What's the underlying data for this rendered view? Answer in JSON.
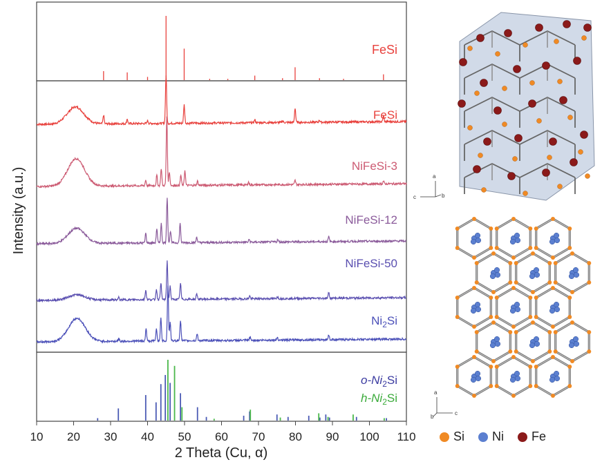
{
  "chart_data": {
    "type": "line",
    "xlabel": "2 Theta (Cu, α)",
    "ylabel": "Intensity (a.u.)",
    "xlim": [
      10,
      110
    ],
    "x_ticks": [
      10,
      20,
      30,
      40,
      50,
      60,
      70,
      80,
      90,
      100,
      110
    ],
    "reference_top": {
      "name": "FeSi",
      "color": "#e8403c",
      "peaks": [
        [
          28.1,
          0.14
        ],
        [
          34.5,
          0.12
        ],
        [
          40.0,
          0.05
        ],
        [
          45.0,
          1.0
        ],
        [
          49.9,
          0.49
        ],
        [
          56.8,
          0.02
        ],
        [
          61.7,
          0.02
        ],
        [
          69.0,
          0.07
        ],
        [
          76.5,
          0.03
        ],
        [
          79.9,
          0.2
        ],
        [
          86.5,
          0.03
        ],
        [
          93.0,
          0.02
        ],
        [
          103.8,
          0.09
        ]
      ]
    },
    "series": [
      {
        "name": "FeSi",
        "color": "#e8403c",
        "hump": [
          20.5,
          0.55
        ],
        "peaks": [
          [
            28.1,
            0.18
          ],
          [
            34.5,
            0.1
          ],
          [
            40.0,
            0.06
          ],
          [
            45.0,
            1.0
          ],
          [
            49.9,
            0.38
          ],
          [
            69.0,
            0.06
          ],
          [
            76.5,
            0.04
          ],
          [
            79.9,
            0.3
          ],
          [
            86.5,
            0.04
          ],
          [
            103.8,
            0.12
          ]
        ]
      },
      {
        "name": "NiFeSi-3",
        "color": "#cc5a72",
        "hump": [
          20.7,
          0.8
        ],
        "peaks": [
          [
            39.5,
            0.08
          ],
          [
            42.5,
            0.15
          ],
          [
            43.7,
            0.25
          ],
          [
            45.2,
            1.0
          ],
          [
            45.9,
            0.2
          ],
          [
            49.0,
            0.15
          ],
          [
            50.1,
            0.22
          ],
          [
            53.5,
            0.06
          ],
          [
            67.3,
            0.04
          ],
          [
            79.9,
            0.06
          ],
          [
            103.8,
            0.04
          ]
        ]
      },
      {
        "name": "NiFeSi-12",
        "color": "#8a5a9a",
        "hump": [
          20.8,
          0.55
        ],
        "peaks": [
          [
            39.5,
            0.2
          ],
          [
            42.5,
            0.3
          ],
          [
            43.7,
            0.4
          ],
          [
            45.3,
            0.95
          ],
          [
            46.2,
            0.25
          ],
          [
            48.8,
            0.4
          ],
          [
            53.3,
            0.12
          ],
          [
            67.5,
            0.06
          ],
          [
            75.2,
            0.05
          ],
          [
            89.0,
            0.1
          ]
        ]
      },
      {
        "name": "NiFeSi-50",
        "color": "#5a4fb0",
        "hump": [
          20.8,
          0.35
        ],
        "peaks": [
          [
            32.2,
            0.06
          ],
          [
            39.5,
            0.25
          ],
          [
            42.4,
            0.28
          ],
          [
            43.6,
            0.45
          ],
          [
            45.3,
            1.0
          ],
          [
            46.1,
            0.35
          ],
          [
            48.9,
            0.42
          ],
          [
            53.3,
            0.15
          ],
          [
            67.6,
            0.08
          ],
          [
            75.1,
            0.06
          ],
          [
            89.0,
            0.15
          ]
        ]
      },
      {
        "name": "Ni2Si",
        "color": "#4a4fb8",
        "hump": [
          20.9,
          0.8
        ],
        "peaks": [
          [
            32.2,
            0.06
          ],
          [
            39.6,
            0.3
          ],
          [
            42.4,
            0.3
          ],
          [
            43.6,
            0.55
          ],
          [
            45.5,
            1.35
          ],
          [
            46.1,
            0.45
          ],
          [
            48.9,
            0.5
          ],
          [
            53.4,
            0.17
          ],
          [
            67.7,
            0.08
          ],
          [
            75.1,
            0.07
          ],
          [
            89.0,
            0.12
          ]
        ]
      }
    ],
    "reference_bottom": [
      {
        "name": "o-Ni2Si",
        "color": "#4a5ab4",
        "peaks": [
          [
            26.5,
            0.04
          ],
          [
            32.1,
            0.2
          ],
          [
            39.5,
            0.42
          ],
          [
            42.3,
            0.3
          ],
          [
            43.6,
            0.6
          ],
          [
            44.8,
            0.75
          ],
          [
            46.1,
            0.62
          ],
          [
            48.9,
            0.45
          ],
          [
            53.5,
            0.22
          ],
          [
            55.9,
            0.06
          ],
          [
            66.0,
            0.08
          ],
          [
            67.6,
            0.15
          ],
          [
            75.0,
            0.1
          ],
          [
            78.0,
            0.06
          ],
          [
            83.6,
            0.08
          ],
          [
            86.6,
            0.05
          ],
          [
            88.2,
            0.1
          ],
          [
            89.2,
            0.05
          ],
          [
            96.5,
            0.06
          ],
          [
            104.6,
            0.04
          ]
        ]
      },
      {
        "name": "h-Ni2Si",
        "color": "#4ab84a",
        "peaks": [
          [
            45.5,
            1.0
          ],
          [
            47.3,
            0.9
          ],
          [
            49.3,
            0.22
          ],
          [
            58.0,
            0.03
          ],
          [
            67.8,
            0.18
          ],
          [
            75.9,
            0.05
          ],
          [
            86.3,
            0.12
          ],
          [
            88.8,
            0.06
          ],
          [
            95.6,
            0.1
          ],
          [
            104.0,
            0.04
          ]
        ]
      }
    ],
    "label_top_ref": "FeSi",
    "label_bottom_o": "o-Ni",
    "label_bottom_h": "h-Ni"
  },
  "legend": [
    {
      "label": "Si",
      "color": "#f08a24"
    },
    {
      "label": "Ni",
      "color": "#5b7fd0"
    },
    {
      "label": "Fe",
      "color": "#8b1a1a"
    }
  ],
  "crystal_axes_top": {
    "a": "a",
    "c": "c",
    "b": "b"
  },
  "crystal_axes_bottom": {
    "a": "a",
    "b": "b",
    "c": "c"
  }
}
